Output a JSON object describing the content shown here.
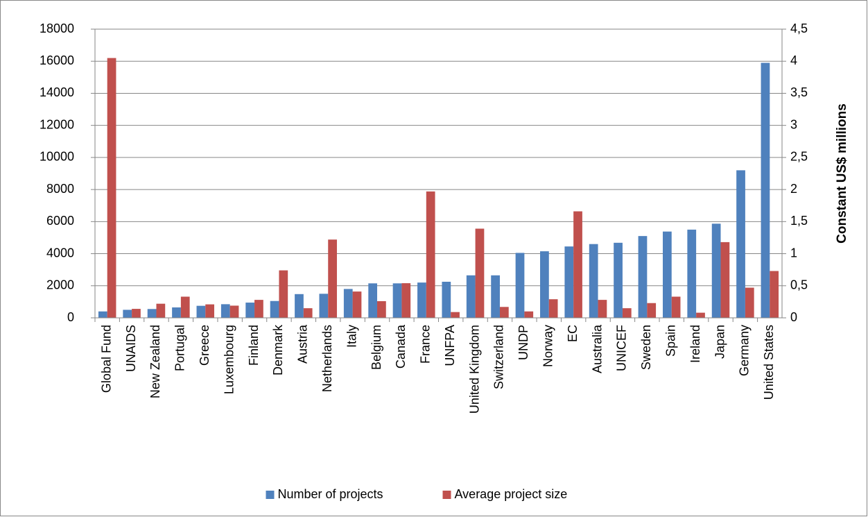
{
  "chart_data": {
    "type": "bar",
    "y2label": "Constant US$ millions",
    "categories": [
      "Global Fund",
      "UNAIDS",
      "New Zealand",
      "Portugal",
      "Greece",
      "Luxembourg",
      "Finland",
      "Denmark",
      "Austria",
      "Netherlands",
      "Italy",
      "Belgium",
      "Canada",
      "France",
      "UNFPA",
      "United Kingdom",
      "Switzerland",
      "UNDP",
      "Norway",
      "EC",
      "Australia",
      "UNICEF",
      "Sweden",
      "Spain",
      "Ireland",
      "Japan",
      "Germany",
      "United States"
    ],
    "series": [
      {
        "name": "Number of projects",
        "color": "#4f81bd",
        "values": [
          400,
          500,
          550,
          650,
          750,
          850,
          950,
          1050,
          1480,
          1500,
          1800,
          2150,
          2150,
          2200,
          2250,
          2650,
          2650,
          4050,
          4150,
          4450,
          4600,
          4680,
          5100,
          5380,
          5500,
          5870,
          9200,
          15900
        ]
      },
      {
        "name": "Average project size",
        "color": "#c0504d",
        "axis": "y2",
        "values": [
          4.05,
          0.14,
          0.22,
          0.33,
          0.21,
          0.19,
          0.28,
          0.74,
          0.15,
          1.22,
          0.41,
          0.26,
          0.54,
          1.97,
          0.09,
          1.39,
          0.17,
          0.1,
          0.29,
          1.66,
          0.28,
          0.15,
          0.23,
          0.33,
          0.08,
          1.18,
          0.47,
          0.73
        ]
      }
    ],
    "ylim": [
      0,
      18000
    ],
    "yticks": [
      0,
      2000,
      4000,
      6000,
      8000,
      10000,
      12000,
      14000,
      16000,
      18000
    ],
    "y2lim": [
      0,
      4.5
    ],
    "y2ticks": [
      0,
      {
        "value": 0.5,
        "label": "0,5"
      },
      1,
      {
        "value": 1.5,
        "label": "1,5"
      },
      2,
      {
        "value": 2.5,
        "label": "2,5"
      },
      3,
      {
        "value": 3.5,
        "label": "3,5"
      },
      4,
      {
        "value": 4.5,
        "label": "4,5"
      }
    ],
    "grid": true,
    "legend": "bottom"
  }
}
